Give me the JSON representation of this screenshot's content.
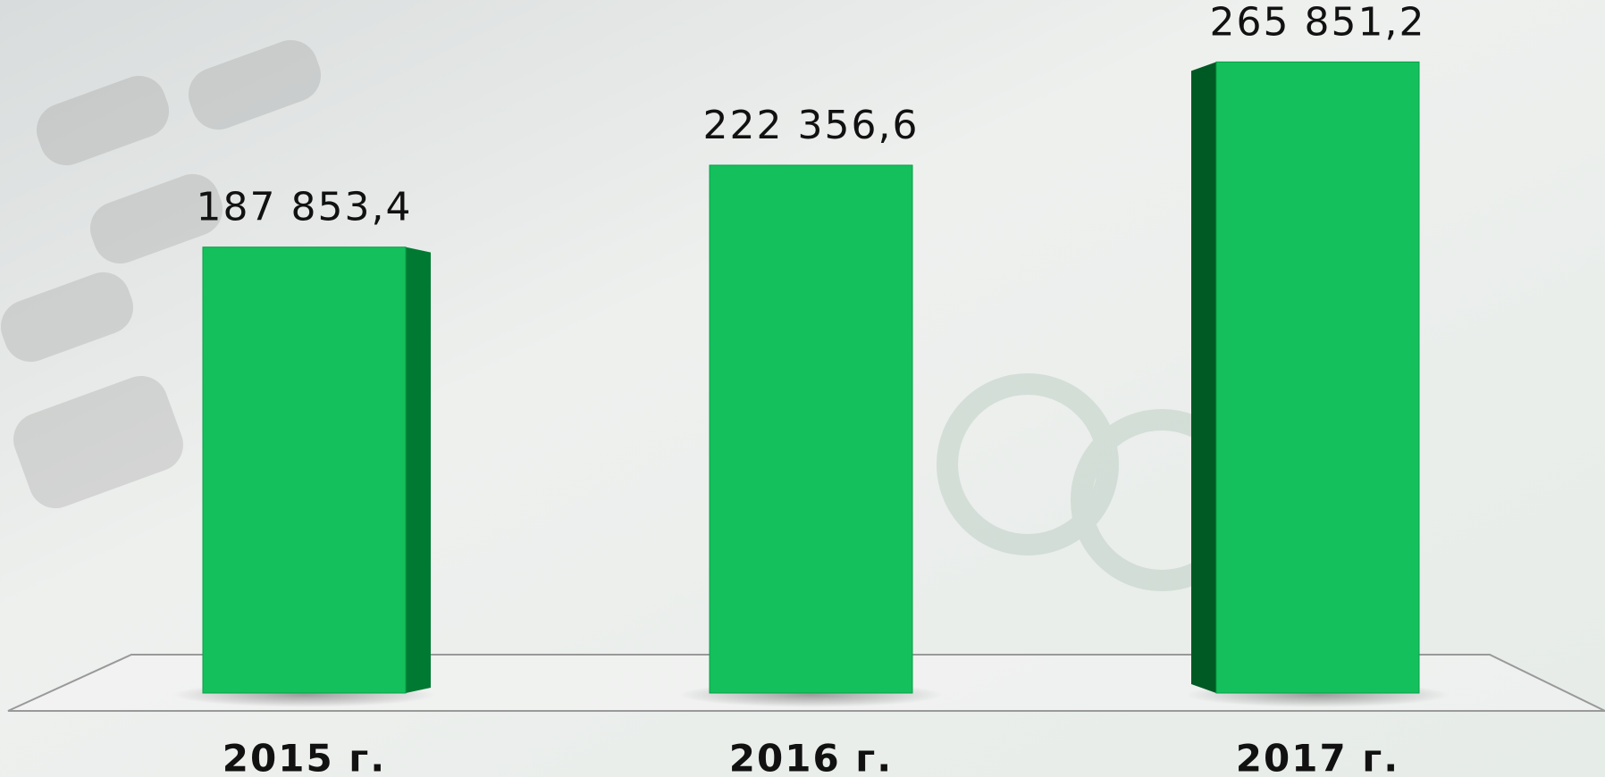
{
  "chart_data": {
    "type": "bar3d",
    "categories": [
      "2015 г.",
      "2016 г.",
      "2017 г."
    ],
    "values": [
      187853.4,
      222356.6,
      265851.2
    ],
    "value_labels": [
      "187 853,4",
      "222 356,6",
      "265 851,2"
    ],
    "color": "#14c05c"
  }
}
